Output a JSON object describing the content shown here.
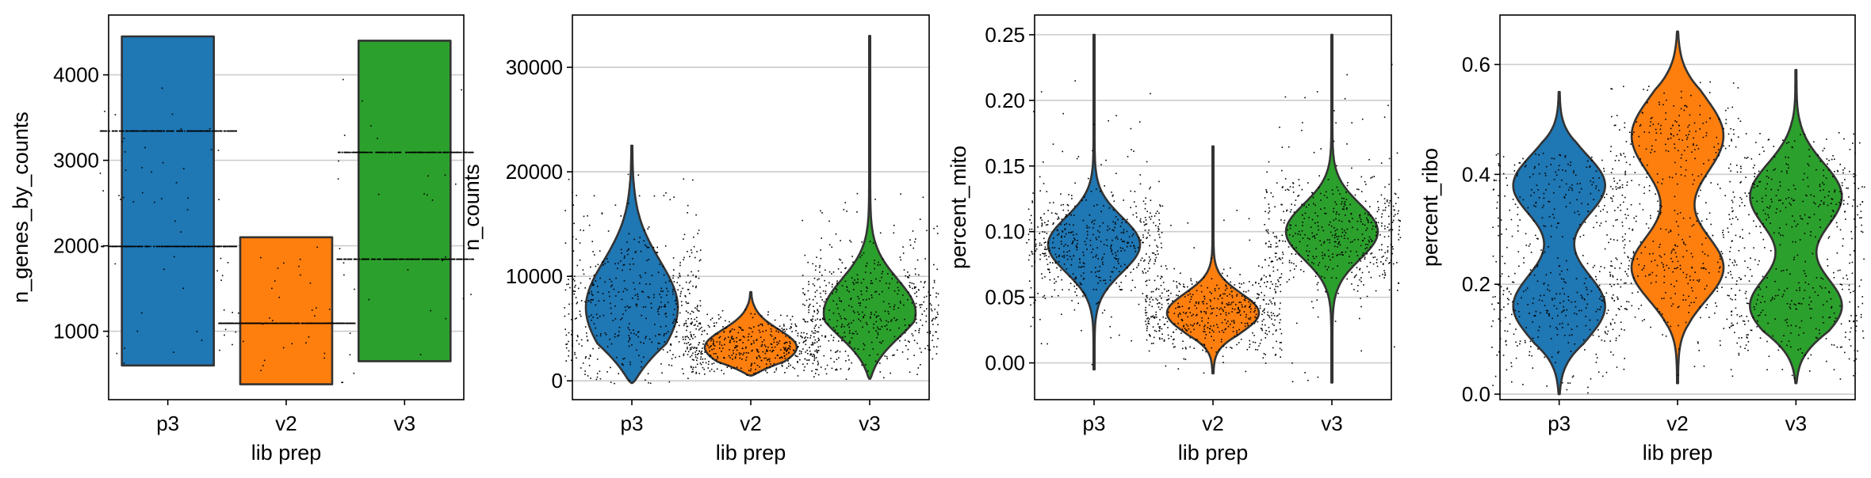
{
  "chart_data": [
    {
      "type": "violin",
      "xlabel": "lib prep",
      "ylabel": "n_genes_by_counts",
      "categories": [
        "p3",
        "v2",
        "v3"
      ],
      "colors": [
        "#1f77b4",
        "#ff7f0e",
        "#2ca02c"
      ],
      "ylim": [
        200,
        4700
      ],
      "yticks": [
        1000,
        2000,
        3000,
        4000
      ],
      "ytick_labels": [
        "1000",
        "2000",
        "3000",
        "4000"
      ],
      "grid": true,
      "jitter_points": true,
      "violins": [
        {
          "min": 600,
          "max": 4450,
          "peaks": [
            [
              2000,
              0.19
            ],
            [
              3350,
              0.08
            ]
          ],
          "stripMax": 4000
        },
        {
          "min": 380,
          "max": 2100,
          "peaks": [
            [
              1100,
              0.2
            ]
          ],
          "stripMax": 2000
        },
        {
          "min": 650,
          "max": 4400,
          "peaks": [
            [
              1850,
              0.19
            ],
            [
              3100,
              0.07
            ]
          ],
          "stripMax": 4050
        }
      ]
    },
    {
      "type": "violin",
      "xlabel": "lib prep",
      "ylabel": "n_counts",
      "categories": [
        "p3",
        "v2",
        "v3"
      ],
      "colors": [
        "#1f77b4",
        "#ff7f0e",
        "#2ca02c"
      ],
      "ylim": [
        -1800,
        35000
      ],
      "yticks": [
        0,
        10000,
        20000,
        30000
      ],
      "ytick_labels": [
        "0",
        "10000",
        "20000",
        "30000"
      ],
      "grid": true,
      "jitter_points": true,
      "violins": [
        {
          "min": -200,
          "max": 22500,
          "peaks": [
            [
              7000,
              4500
            ]
          ],
          "stripMax": 20000
        },
        {
          "min": 500,
          "max": 8500,
          "peaks": [
            [
              3200,
              1700
            ]
          ],
          "stripMax": 7000
        },
        {
          "min": 200,
          "max": 33000,
          "peaks": [
            [
              6500,
              3200
            ]
          ],
          "stripMax": 18000
        }
      ]
    },
    {
      "type": "violin",
      "xlabel": "lib prep",
      "ylabel": "percent_mito",
      "categories": [
        "p3",
        "v2",
        "v3"
      ],
      "colors": [
        "#1f77b4",
        "#ff7f0e",
        "#2ca02c"
      ],
      "ylim": [
        -0.028,
        0.265
      ],
      "yticks": [
        0.0,
        0.05,
        0.1,
        0.15,
        0.2,
        0.25
      ],
      "ytick_labels": [
        "0.00",
        "0.05",
        "0.10",
        "0.15",
        "0.20",
        "0.25"
      ],
      "grid": true,
      "jitter_points": true,
      "violins": [
        {
          "min": -0.005,
          "max": 0.25,
          "peaks": [
            [
              0.09,
              0.021
            ]
          ],
          "stripMax": 0.22
        },
        {
          "min": -0.008,
          "max": 0.165,
          "peaks": [
            [
              0.038,
              0.015
            ]
          ],
          "stripMax": 0.12
        },
        {
          "min": -0.015,
          "max": 0.25,
          "peaks": [
            [
              0.1,
              0.021
            ]
          ],
          "stripMax": 0.24
        }
      ]
    },
    {
      "type": "violin",
      "xlabel": "lib prep",
      "ylabel": "percent_ribo",
      "categories": [
        "p3",
        "v2",
        "v3"
      ],
      "colors": [
        "#1f77b4",
        "#ff7f0e",
        "#2ca02c"
      ],
      "ylim": [
        -0.01,
        0.69
      ],
      "yticks": [
        0.0,
        0.2,
        0.4,
        0.6
      ],
      "ytick_labels": [
        "0.0",
        "0.2",
        "0.4",
        "0.6"
      ],
      "grid": true,
      "jitter_points": true,
      "violins": [
        {
          "min": 0.0,
          "max": 0.55,
          "peaks": [
            [
              0.16,
              0.06
            ],
            [
              0.38,
              0.055
            ]
          ],
          "stripMax": 0.44
        },
        {
          "min": 0.02,
          "max": 0.66,
          "peaks": [
            [
              0.47,
              0.07
            ],
            [
              0.23,
              0.06
            ]
          ],
          "stripMax": 0.57
        },
        {
          "min": 0.02,
          "max": 0.59,
          "peaks": [
            [
              0.16,
              0.055
            ],
            [
              0.36,
              0.06
            ]
          ],
          "stripMax": 0.48
        }
      ]
    }
  ]
}
